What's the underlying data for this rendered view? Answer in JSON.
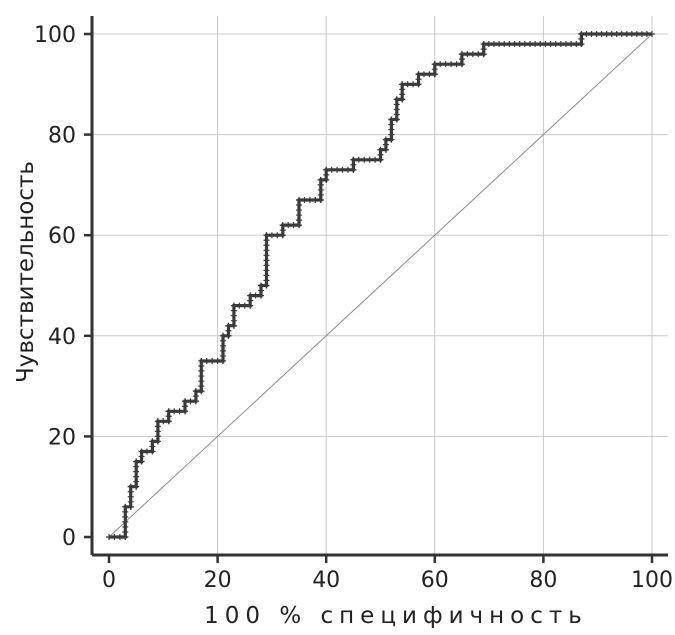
{
  "chart_data": {
    "type": "line",
    "title": "",
    "xlabel": "100 % специфичность",
    "ylabel": "Чувствительность",
    "xlim": [
      0,
      100
    ],
    "ylim": [
      0,
      100
    ],
    "xticks": [
      "0",
      "20",
      "40",
      "60",
      "80",
      "100"
    ],
    "yticks": [
      "0",
      "20",
      "40",
      "60",
      "80",
      "100"
    ],
    "grid": true,
    "legend": "none",
    "colors": {
      "curve": "#3a3a3a",
      "diagonal": "#8a8a8a",
      "grid": "#c8c8c8",
      "axis": "#333333"
    },
    "series": [
      {
        "x": [
          0,
          3,
          3,
          4,
          4,
          5,
          5,
          6,
          6,
          8,
          8,
          9,
          9,
          11,
          11,
          14,
          14,
          16,
          16,
          17,
          17,
          21,
          21,
          22,
          22,
          23,
          23,
          26,
          26,
          28,
          28,
          29,
          29,
          32,
          32,
          35,
          35,
          39,
          39,
          40,
          40,
          45,
          45,
          50,
          50,
          51,
          51,
          52,
          52,
          53,
          53,
          54,
          54,
          57,
          57,
          60,
          60,
          65,
          65,
          69,
          69,
          87,
          87,
          100
        ],
        "y": [
          0,
          0,
          6,
          6,
          10,
          10,
          15,
          15,
          17,
          17,
          19,
          19,
          23,
          23,
          25,
          25,
          27,
          27,
          29,
          29,
          35,
          35,
          40,
          40,
          42,
          42,
          46,
          46,
          48,
          48,
          50,
          50,
          60,
          60,
          62,
          62,
          67,
          67,
          71,
          71,
          73,
          73,
          75,
          75,
          77,
          77,
          79,
          79,
          83,
          83,
          87,
          87,
          90,
          90,
          92,
          92,
          94,
          94,
          96,
          96,
          98,
          98,
          100,
          100
        ]
      },
      {
        "x": [
          0,
          100
        ],
        "y": [
          0,
          100
        ]
      }
    ]
  }
}
